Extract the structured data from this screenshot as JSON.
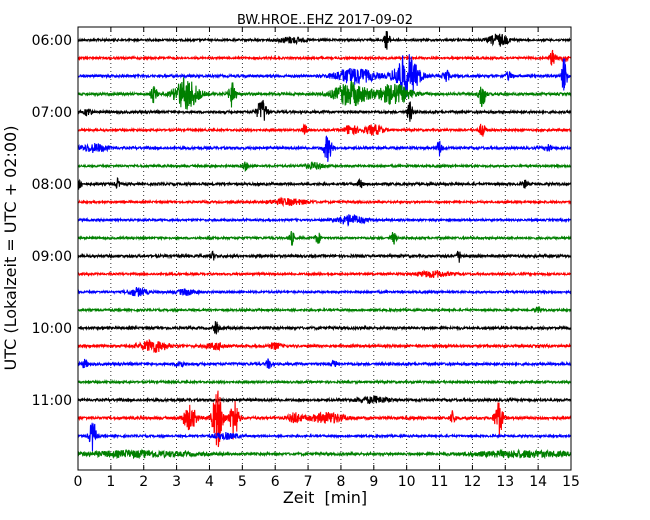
{
  "chart_data": {
    "type": "line",
    "title": "BW.HROE..EHZ 2017-09-02",
    "xlabel": "Zeit  [min]",
    "ylabel": "UTC (Lokalzeit = UTC + 02:00)",
    "xlim": [
      0,
      15
    ],
    "x_ticks": [
      "0",
      "1",
      "2",
      "3",
      "4",
      "5",
      "6",
      "7",
      "8",
      "9",
      "10",
      "11",
      "12",
      "13",
      "14",
      "15"
    ],
    "hour_labels": [
      "06:00",
      "07:00",
      "08:00",
      "09:00",
      "10:00",
      "11:00"
    ],
    "grid": "vertical dotted lines at each minute",
    "colors": [
      "#000000",
      "#ff0000",
      "#0000ff",
      "#008000"
    ],
    "trace_rows": [
      {
        "start": "06:00",
        "color": "#000000",
        "amp": 1.0,
        "events": [
          {
            "t": 6.5,
            "a": 3,
            "w": 0.4
          },
          {
            "t": 9.4,
            "a": 10,
            "w": 0.08
          },
          {
            "t": 12.8,
            "a": 6,
            "w": 0.3
          }
        ]
      },
      {
        "start": "06:15",
        "color": "#ff0000",
        "amp": 1.0,
        "events": [
          {
            "t": 14.45,
            "a": 10,
            "w": 0.08
          },
          {
            "t": 14.8,
            "a": 4,
            "w": 0.1
          }
        ]
      },
      {
        "start": "06:30",
        "color": "#0000ff",
        "amp": 1.2,
        "events": [
          {
            "t": 8.4,
            "a": 8,
            "w": 0.6
          },
          {
            "t": 10.0,
            "a": 22,
            "w": 0.35
          },
          {
            "t": 11.2,
            "a": 7,
            "w": 0.1
          },
          {
            "t": 13.1,
            "a": 4,
            "w": 0.1
          },
          {
            "t": 14.8,
            "a": 20,
            "w": 0.08
          }
        ]
      },
      {
        "start": "06:45",
        "color": "#008000",
        "amp": 1.2,
        "events": [
          {
            "t": 2.3,
            "a": 8,
            "w": 0.1
          },
          {
            "t": 3.3,
            "a": 16,
            "w": 0.35
          },
          {
            "t": 4.7,
            "a": 14,
            "w": 0.1
          },
          {
            "t": 8.3,
            "a": 12,
            "w": 0.5
          },
          {
            "t": 9.6,
            "a": 10,
            "w": 0.5
          },
          {
            "t": 12.3,
            "a": 14,
            "w": 0.1
          }
        ]
      },
      {
        "start": "07:00",
        "color": "#000000",
        "amp": 1.2,
        "events": [
          {
            "t": 0.3,
            "a": 4,
            "w": 0.1
          },
          {
            "t": 5.6,
            "a": 12,
            "w": 0.15
          },
          {
            "t": 10.1,
            "a": 10,
            "w": 0.08
          }
        ]
      },
      {
        "start": "07:15",
        "color": "#ff0000",
        "amp": 1.0,
        "events": [
          {
            "t": 6.9,
            "a": 5,
            "w": 0.08
          },
          {
            "t": 8.3,
            "a": 5,
            "w": 0.2
          },
          {
            "t": 9.0,
            "a": 5,
            "w": 0.3
          },
          {
            "t": 12.3,
            "a": 8,
            "w": 0.08
          }
        ]
      },
      {
        "start": "07:30",
        "color": "#0000ff",
        "amp": 1.2,
        "events": [
          {
            "t": 0.5,
            "a": 4,
            "w": 0.4
          },
          {
            "t": 7.6,
            "a": 13,
            "w": 0.12
          },
          {
            "t": 11.0,
            "a": 8,
            "w": 0.08
          },
          {
            "t": 14.3,
            "a": 4,
            "w": 0.1
          }
        ]
      },
      {
        "start": "07:45",
        "color": "#008000",
        "amp": 1.0,
        "events": [
          {
            "t": 5.1,
            "a": 4,
            "w": 0.1
          },
          {
            "t": 7.2,
            "a": 3,
            "w": 0.3
          }
        ]
      },
      {
        "start": "08:00",
        "color": "#000000",
        "amp": 1.2,
        "events": [
          {
            "t": 0.05,
            "a": 7,
            "w": 0.06
          },
          {
            "t": 1.2,
            "a": 5,
            "w": 0.06
          },
          {
            "t": 8.6,
            "a": 4,
            "w": 0.08
          },
          {
            "t": 13.6,
            "a": 4,
            "w": 0.08
          }
        ]
      },
      {
        "start": "08:15",
        "color": "#ff0000",
        "amp": 1.0,
        "events": [
          {
            "t": 6.4,
            "a": 3,
            "w": 0.6
          }
        ]
      },
      {
        "start": "08:30",
        "color": "#0000ff",
        "amp": 1.0,
        "events": [
          {
            "t": 8.3,
            "a": 5,
            "w": 0.4
          }
        ]
      },
      {
        "start": "08:45",
        "color": "#008000",
        "amp": 1.0,
        "events": [
          {
            "t": 6.5,
            "a": 7,
            "w": 0.08
          },
          {
            "t": 7.3,
            "a": 6,
            "w": 0.08
          },
          {
            "t": 9.6,
            "a": 6,
            "w": 0.08
          }
        ]
      },
      {
        "start": "09:00",
        "color": "#000000",
        "amp": 1.2,
        "events": [
          {
            "t": 4.1,
            "a": 4,
            "w": 0.08
          },
          {
            "t": 11.6,
            "a": 6,
            "w": 0.08
          }
        ]
      },
      {
        "start": "09:15",
        "color": "#ff0000",
        "amp": 1.0,
        "events": [
          {
            "t": 10.8,
            "a": 3,
            "w": 0.5
          }
        ]
      },
      {
        "start": "09:30",
        "color": "#0000ff",
        "amp": 1.0,
        "events": [
          {
            "t": 1.8,
            "a": 4,
            "w": 0.3
          },
          {
            "t": 3.3,
            "a": 3,
            "w": 0.3
          }
        ]
      },
      {
        "start": "09:45",
        "color": "#008000",
        "amp": 1.0,
        "events": [
          {
            "t": 14.0,
            "a": 3,
            "w": 0.1
          }
        ]
      },
      {
        "start": "10:00",
        "color": "#000000",
        "amp": 1.2,
        "events": [
          {
            "t": 4.2,
            "a": 6,
            "w": 0.08
          }
        ]
      },
      {
        "start": "10:15",
        "color": "#ff0000",
        "amp": 1.2,
        "events": [
          {
            "t": 2.3,
            "a": 6,
            "w": 0.4
          },
          {
            "t": 4.2,
            "a": 3,
            "w": 0.3
          },
          {
            "t": 6.0,
            "a": 3,
            "w": 0.2
          }
        ]
      },
      {
        "start": "10:30",
        "color": "#0000ff",
        "amp": 1.2,
        "events": [
          {
            "t": 0.2,
            "a": 4,
            "w": 0.1
          },
          {
            "t": 3.1,
            "a": 4,
            "w": 0.1
          },
          {
            "t": 5.8,
            "a": 5,
            "w": 0.08
          },
          {
            "t": 7.8,
            "a": 3,
            "w": 0.1
          }
        ]
      },
      {
        "start": "10:45",
        "color": "#008000",
        "amp": 1.0,
        "events": []
      },
      {
        "start": "11:00",
        "color": "#000000",
        "amp": 1.2,
        "events": [
          {
            "t": 9.0,
            "a": 3,
            "w": 0.5
          }
        ]
      },
      {
        "start": "11:15",
        "color": "#ff0000",
        "amp": 1.3,
        "events": [
          {
            "t": 3.4,
            "a": 12,
            "w": 0.2
          },
          {
            "t": 4.25,
            "a": 30,
            "w": 0.15
          },
          {
            "t": 4.75,
            "a": 22,
            "w": 0.12
          },
          {
            "t": 6.6,
            "a": 5,
            "w": 0.2
          },
          {
            "t": 7.6,
            "a": 5,
            "w": 0.5
          },
          {
            "t": 11.4,
            "a": 7,
            "w": 0.08
          },
          {
            "t": 12.8,
            "a": 18,
            "w": 0.12
          }
        ]
      },
      {
        "start": "11:30",
        "color": "#0000ff",
        "amp": 1.0,
        "events": [
          {
            "t": 0.45,
            "a": 16,
            "w": 0.1
          },
          {
            "t": 4.5,
            "a": 3,
            "w": 0.4
          }
        ]
      },
      {
        "start": "11:45",
        "color": "#008000",
        "amp": 1.2,
        "events": [
          {
            "t": 1.8,
            "a": 3,
            "w": 1.5
          },
          {
            "t": 13.5,
            "a": 3,
            "w": 1.5
          }
        ]
      }
    ]
  }
}
